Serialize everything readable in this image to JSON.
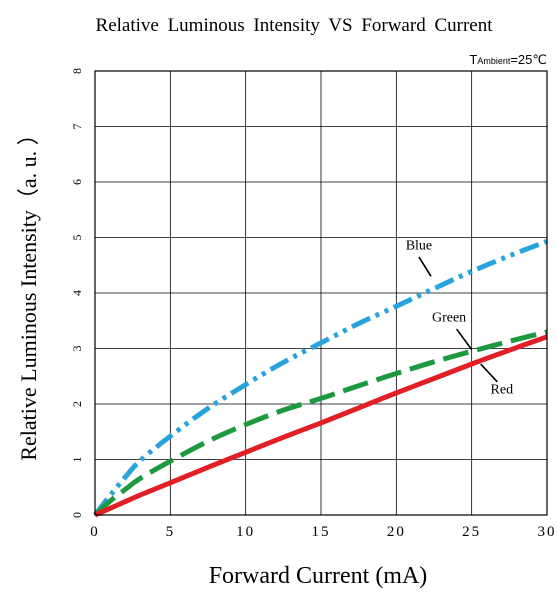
{
  "chart_data": {
    "type": "line",
    "title": "Relative Luminous Intensity VS Forward Current",
    "condition_label": {
      "prefix": "T",
      "subscript": "Ambient",
      "value": "=25℃"
    },
    "xlabel": "Forward Current (mA)",
    "ylabel": "Relative Luminous Intensity（a. u. ）",
    "xlim": [
      0,
      30
    ],
    "ylim": [
      0,
      8
    ],
    "x_ticks": [
      0,
      5,
      10,
      15,
      20,
      25,
      30
    ],
    "y_ticks": [
      0,
      1,
      2,
      3,
      4,
      5,
      6,
      7,
      8
    ],
    "grid": true,
    "series": [
      {
        "name": "Blue",
        "color": "#29a3dd",
        "dash": "dash-dot-dot",
        "x": [
          0,
          1,
          2,
          3,
          5,
          7.5,
          10,
          12.5,
          15,
          17.5,
          20,
          22.5,
          25,
          27.5,
          30
        ],
        "y": [
          0,
          0.35,
          0.68,
          0.98,
          1.42,
          1.92,
          2.35,
          2.75,
          3.1,
          3.45,
          3.76,
          4.08,
          4.39,
          4.67,
          4.93
        ]
      },
      {
        "name": "Green",
        "color": "#1e9940",
        "dash": "long-dash",
        "x": [
          0,
          1,
          2,
          3,
          5,
          7.5,
          10,
          12.5,
          15,
          17.5,
          20,
          22.5,
          25,
          27.5,
          30
        ],
        "y": [
          0,
          0.25,
          0.46,
          0.66,
          0.97,
          1.33,
          1.63,
          1.89,
          2.1,
          2.33,
          2.55,
          2.76,
          2.95,
          3.13,
          3.3
        ]
      },
      {
        "name": "Red",
        "color": "#e21f26",
        "dash": "solid",
        "x": [
          0,
          1,
          2,
          3,
          5,
          7.5,
          10,
          12.5,
          15,
          17.5,
          20,
          22.5,
          25,
          27.5,
          30
        ],
        "y": [
          0,
          0.12,
          0.24,
          0.36,
          0.58,
          0.86,
          1.13,
          1.4,
          1.66,
          1.93,
          2.2,
          2.46,
          2.72,
          2.97,
          3.21
        ]
      }
    ],
    "annotations": [
      {
        "text": "Blue",
        "series": "Blue",
        "label_at": [
          21.5,
          4.85
        ],
        "pointer_from": [
          21.5,
          4.65
        ],
        "pointer_to": [
          22.3,
          4.3
        ]
      },
      {
        "text": "Green",
        "series": "Green",
        "label_at": [
          23.5,
          3.55
        ],
        "pointer_from": [
          24.0,
          3.35
        ],
        "pointer_to": [
          25.0,
          2.98
        ]
      },
      {
        "text": "Red",
        "series": "Red",
        "label_at": [
          27.0,
          2.25
        ],
        "pointer_from": [
          26.7,
          2.4
        ],
        "pointer_to": [
          25.6,
          2.72
        ]
      }
    ]
  }
}
